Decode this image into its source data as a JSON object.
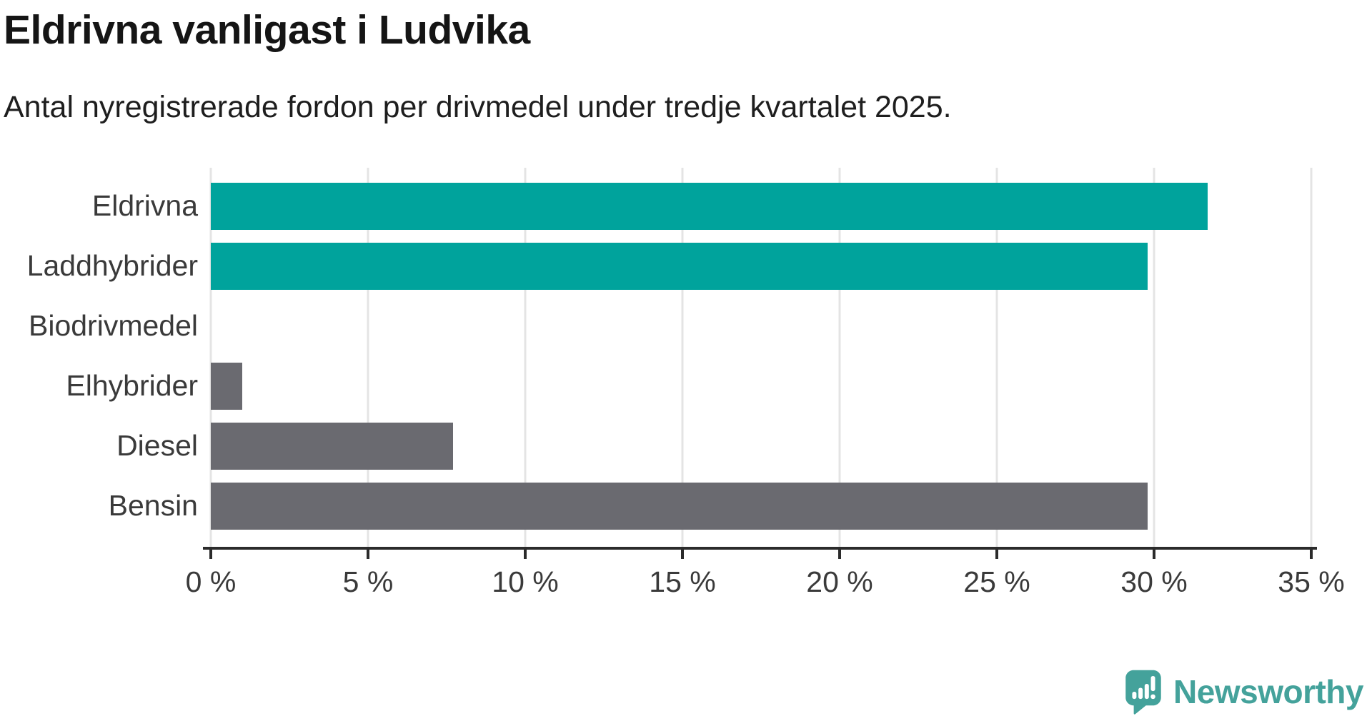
{
  "header": {
    "title": "Eldrivna vanligast i Ludvika",
    "subtitle": "Antal nyregistrerade fordon per drivmedel under tredje kvartalet 2025."
  },
  "chart_data": {
    "type": "bar",
    "orientation": "horizontal",
    "title": "Eldrivna vanligast i Ludvika",
    "subtitle": "Antal nyregistrerade fordon per drivmedel under tredje kvartalet 2025.",
    "categories": [
      "Eldrivna",
      "Laddhybrider",
      "Biodrivmedel",
      "Elhybrider",
      "Diesel",
      "Bensin"
    ],
    "values": [
      31.7,
      29.8,
      0,
      1.0,
      7.7,
      29.8
    ],
    "unit": "%",
    "xlabel": "",
    "ylabel": "",
    "xlim": [
      0,
      35
    ],
    "tick_values": [
      0,
      5,
      10,
      15,
      20,
      25,
      30,
      35
    ],
    "tick_labels": [
      "0 %",
      "5 %",
      "10 %",
      "15 %",
      "20 %",
      "25 %",
      "30 %",
      "35 %"
    ],
    "bar_colors": [
      "#00a39c",
      "#00a39c",
      "#6a6a70",
      "#6a6a70",
      "#6a6a70",
      "#6a6a70"
    ],
    "grid": true,
    "gridline_color": "#e4e4e4",
    "axis_color": "#2b2b2b",
    "legend": "none"
  },
  "branding": {
    "logo_text": "Newsworthy",
    "logo_color": "#44a29b",
    "icon": "newsworthy-badge-icon"
  }
}
